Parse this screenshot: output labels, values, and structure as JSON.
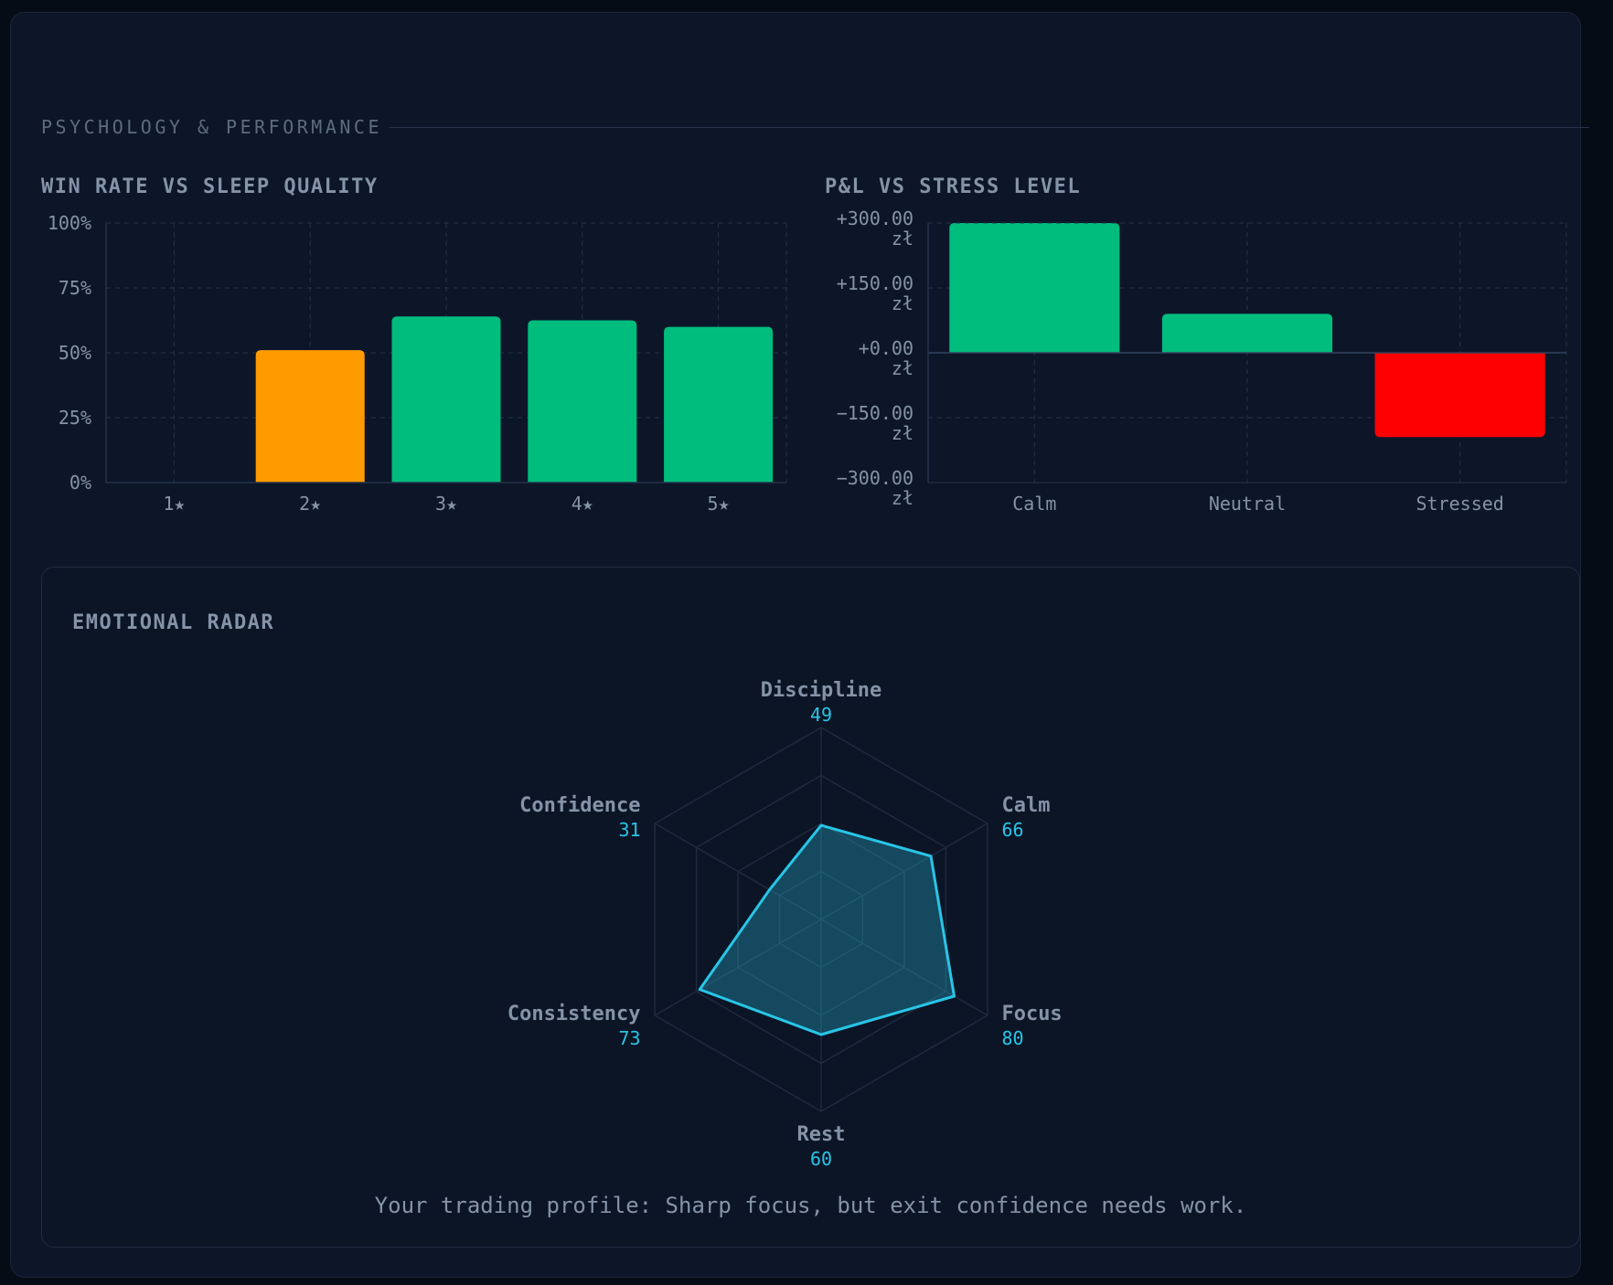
{
  "section": {
    "title": "PSYCHOLOGY & PERFORMANCE"
  },
  "colors": {
    "green": "#00bd7e",
    "orange": "#ff9b00",
    "red": "#ff0000",
    "cyan": "#29c5e6",
    "grid": "#25324a"
  },
  "chart_data": [
    {
      "type": "bar",
      "title": "WIN RATE VS SLEEP QUALITY",
      "categories": [
        "1★",
        "2★",
        "3★",
        "4★",
        "5★"
      ],
      "values": [
        null,
        51,
        64,
        62.5,
        60
      ],
      "bar_colors": [
        null,
        "#ff9b00",
        "#00bd7e",
        "#00bd7e",
        "#00bd7e"
      ],
      "ylim": [
        0,
        100
      ],
      "yticks": [
        "100%",
        "75%",
        "50%",
        "25%",
        "0%"
      ],
      "grid": true
    },
    {
      "type": "bar",
      "title": "P&L VS STRESS LEVEL",
      "categories": [
        "Calm",
        "Neutral",
        "Stressed"
      ],
      "values": [
        300,
        90,
        -195
      ],
      "bar_colors": [
        "#00bd7e",
        "#00bd7e",
        "#ff0000"
      ],
      "ylim": [
        -300,
        300
      ],
      "yticks": [
        [
          "+300.00",
          "zł"
        ],
        [
          "+150.00",
          "zł"
        ],
        [
          "+0.00",
          "zł"
        ],
        [
          "−150.00",
          "zł"
        ],
        [
          "−300.00",
          "zł"
        ]
      ],
      "grid": true
    },
    {
      "type": "radar",
      "title": "EMOTIONAL RADAR",
      "max": 100,
      "axes": [
        {
          "name": "Discipline",
          "value": 49
        },
        {
          "name": "Calm",
          "value": 66
        },
        {
          "name": "Focus",
          "value": 80
        },
        {
          "name": "Rest",
          "value": 60
        },
        {
          "name": "Consistency",
          "value": 73
        },
        {
          "name": "Confidence",
          "value": 31
        }
      ]
    }
  ],
  "profile_text": "Your trading profile: Sharp focus, but exit confidence needs work."
}
